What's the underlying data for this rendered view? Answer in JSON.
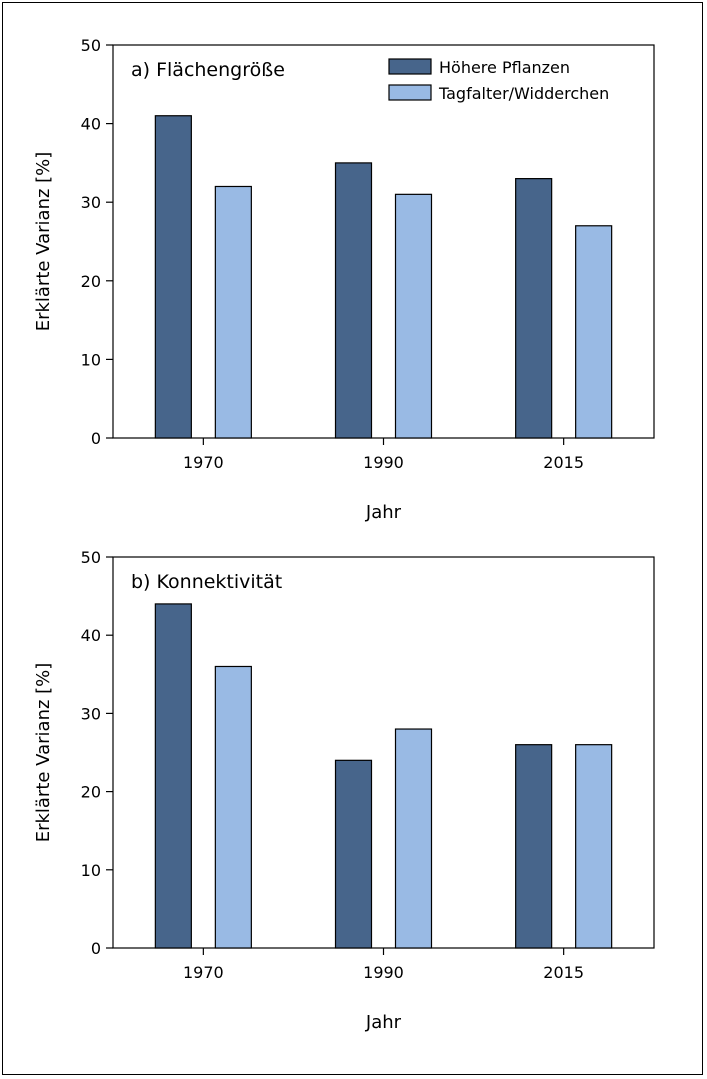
{
  "colors": {
    "plants": "#47658b",
    "butterflies": "#99bae4"
  },
  "chart_data": [
    {
      "type": "bar",
      "title": "a) Flächengröße",
      "xlabel": "Jahr",
      "ylabel": "Erklärte Varianz [%]",
      "ylim": [
        0,
        50
      ],
      "yticks": [
        "0",
        "10",
        "20",
        "30",
        "40",
        "50"
      ],
      "categories": [
        "1970",
        "1990",
        "2015"
      ],
      "legend": {
        "placement": "top-right",
        "visible": true
      },
      "grid": false,
      "series": [
        {
          "name": "Höhere Pflanzen",
          "values": [
            41,
            35,
            33
          ]
        },
        {
          "name": "Tagfalter/Widderchen",
          "values": [
            32,
            31,
            27
          ]
        }
      ]
    },
    {
      "type": "bar",
      "title": "b) Konnektivität",
      "xlabel": "Jahr",
      "ylabel": "Erklärte Varianz [%]",
      "ylim": [
        0,
        50
      ],
      "yticks": [
        "0",
        "10",
        "20",
        "30",
        "40",
        "50"
      ],
      "categories": [
        "1970",
        "1990",
        "2015"
      ],
      "legend": {
        "visible": false
      },
      "grid": false,
      "series": [
        {
          "name": "Höhere Pflanzen",
          "values": [
            44,
            24,
            26
          ]
        },
        {
          "name": "Tagfalter/Widderchen",
          "values": [
            36,
            28,
            26
          ]
        }
      ]
    }
  ]
}
